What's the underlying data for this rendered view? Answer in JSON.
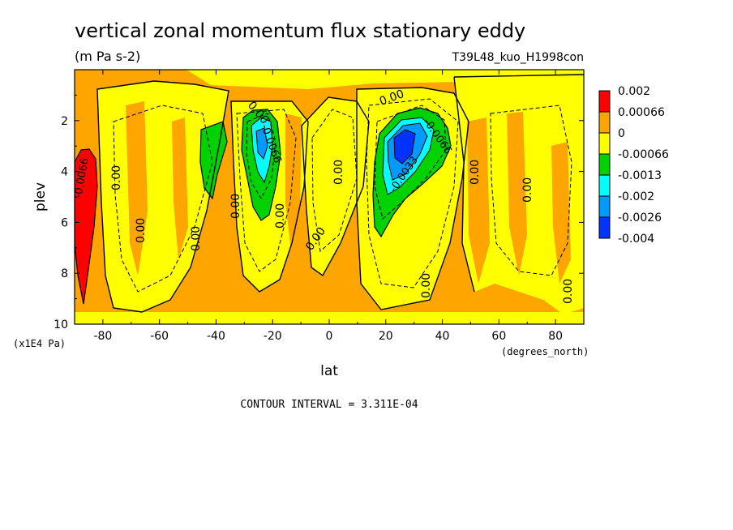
{
  "chart_data": {
    "type": "heatmap",
    "title": "vertical zonal momentum flux stationary eddy",
    "units": "(m Pa s-2)",
    "run_label": "T39L48_kuo_H1998con",
    "xlabel": "lat",
    "x_units": "(degrees_north)",
    "ylabel": "plev",
    "y_units": "(x1E4 Pa)",
    "xlim": [
      -90,
      90
    ],
    "ylim": [
      10,
      0
    ],
    "x_ticks": [
      -80,
      -60,
      -40,
      -20,
      0,
      20,
      40,
      60,
      80
    ],
    "x_tick_labels": [
      "-80",
      "-60",
      "-40",
      "-20",
      "0",
      "20",
      "40",
      "60",
      "80"
    ],
    "y_ticks": [
      2,
      4,
      6,
      8,
      10
    ],
    "y_tick_labels": [
      "2",
      "4",
      "6",
      "8",
      "10"
    ],
    "contour_interval_text": "CONTOUR INTERVAL = 3.311E-04",
    "contour_labels": [
      "0.00",
      "-0.0066",
      "-0.0033"
    ],
    "legend": {
      "placement": "right",
      "levels": [
        "0.002",
        "0.00066",
        "0",
        "-0.00066",
        "-0.0013",
        "-0.002",
        "-0.0026",
        "-0.004"
      ],
      "colors": [
        "#ff0000",
        "#ffa500",
        "#ffff00",
        "#00d200",
        "#00ffff",
        "#0099ff",
        "#0033ff"
      ]
    },
    "features": [
      {
        "lat": -85,
        "plev": 6.0,
        "value": 0.0016
      },
      {
        "lat": -23,
        "plev": 3.4,
        "value": -0.0017
      },
      {
        "lat": -45,
        "plev": 3.4,
        "value": -0.0009
      },
      {
        "lat": 25,
        "plev": 3.5,
        "value": -0.0035
      },
      {
        "lat": -5,
        "plev": 3.5,
        "value": -0.0005
      },
      {
        "lat": 10,
        "plev": 4.5,
        "value": -0.0004
      },
      {
        "lat": 70,
        "plev": 5.0,
        "value": -0.0004
      }
    ]
  }
}
